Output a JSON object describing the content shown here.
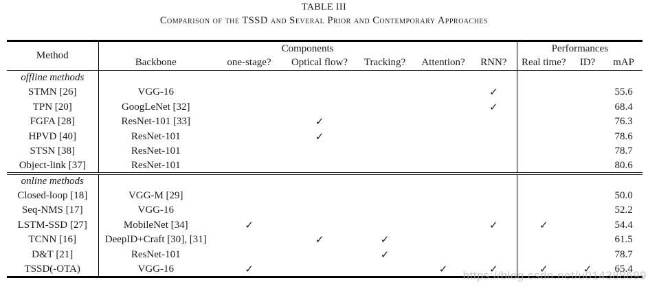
{
  "caption": {
    "title": "TABLE III",
    "subtitle": "Comparison of the TSSD and Several Prior and Contemporary Approaches"
  },
  "table": {
    "col_headers": [
      "Method",
      "Backbone",
      "one-stage?",
      "Optical flow?",
      "Tracking?",
      "Attention?",
      "RNN?",
      "Real time?",
      "ID?",
      "mAP"
    ],
    "group_headers": {
      "components": "Components",
      "performances": "Performances"
    },
    "checkmark_glyph": "✓",
    "sections": [
      {
        "label": "offline methods",
        "rows": [
          [
            "STMN [26]",
            "VGG-16",
            "",
            "",
            "",
            "",
            "✓",
            "",
            "",
            "55.6"
          ],
          [
            "TPN [20]",
            "GoogLeNet [32]",
            "",
            "",
            "",
            "",
            "✓",
            "",
            "",
            "68.4"
          ],
          [
            "FGFA [28]",
            "ResNet-101 [33]",
            "",
            "✓",
            "",
            "",
            "",
            "",
            "",
            "76.3"
          ],
          [
            "HPVD [40]",
            "ResNet-101",
            "",
            "✓",
            "",
            "",
            "",
            "",
            "",
            "78.6"
          ],
          [
            "STSN [38]",
            "ResNet-101",
            "",
            "",
            "",
            "",
            "",
            "",
            "",
            "78.7"
          ],
          [
            "Object-link [37]",
            "ResNet-101",
            "",
            "",
            "",
            "",
            "",
            "",
            "",
            "80.6"
          ]
        ]
      },
      {
        "label": "online methods",
        "rows": [
          [
            "Closed-loop [18]",
            "VGG-M [29]",
            "",
            "",
            "",
            "",
            "",
            "",
            "",
            "50.0"
          ],
          [
            "Seq-NMS [17]",
            "VGG-16",
            "",
            "",
            "",
            "",
            "",
            "",
            "",
            "52.2"
          ],
          [
            "LSTM-SSD [27]",
            "MobileNet [34]",
            "✓",
            "",
            "",
            "",
            "✓",
            "✓",
            "",
            "54.4"
          ],
          [
            "TCNN [16]",
            "DeepID+Craft [30], [31]",
            "",
            "✓",
            "✓",
            "",
            "",
            "",
            "",
            "61.5"
          ],
          [
            "D&T [21]",
            "ResNet-101",
            "",
            "",
            "✓",
            "",
            "",
            "",
            "",
            "78.7"
          ],
          [
            "TSSD(-OTA)",
            "VGG-16",
            "✓",
            "",
            "",
            "✓",
            "✓",
            "✓",
            "✓",
            "65.4"
          ]
        ]
      }
    ]
  },
  "watermark": "https://blog.csdn.net/u014388699",
  "colors": {
    "text": "#1a1a1a",
    "rule": "#000000",
    "watermark": "#b2b2b2"
  }
}
